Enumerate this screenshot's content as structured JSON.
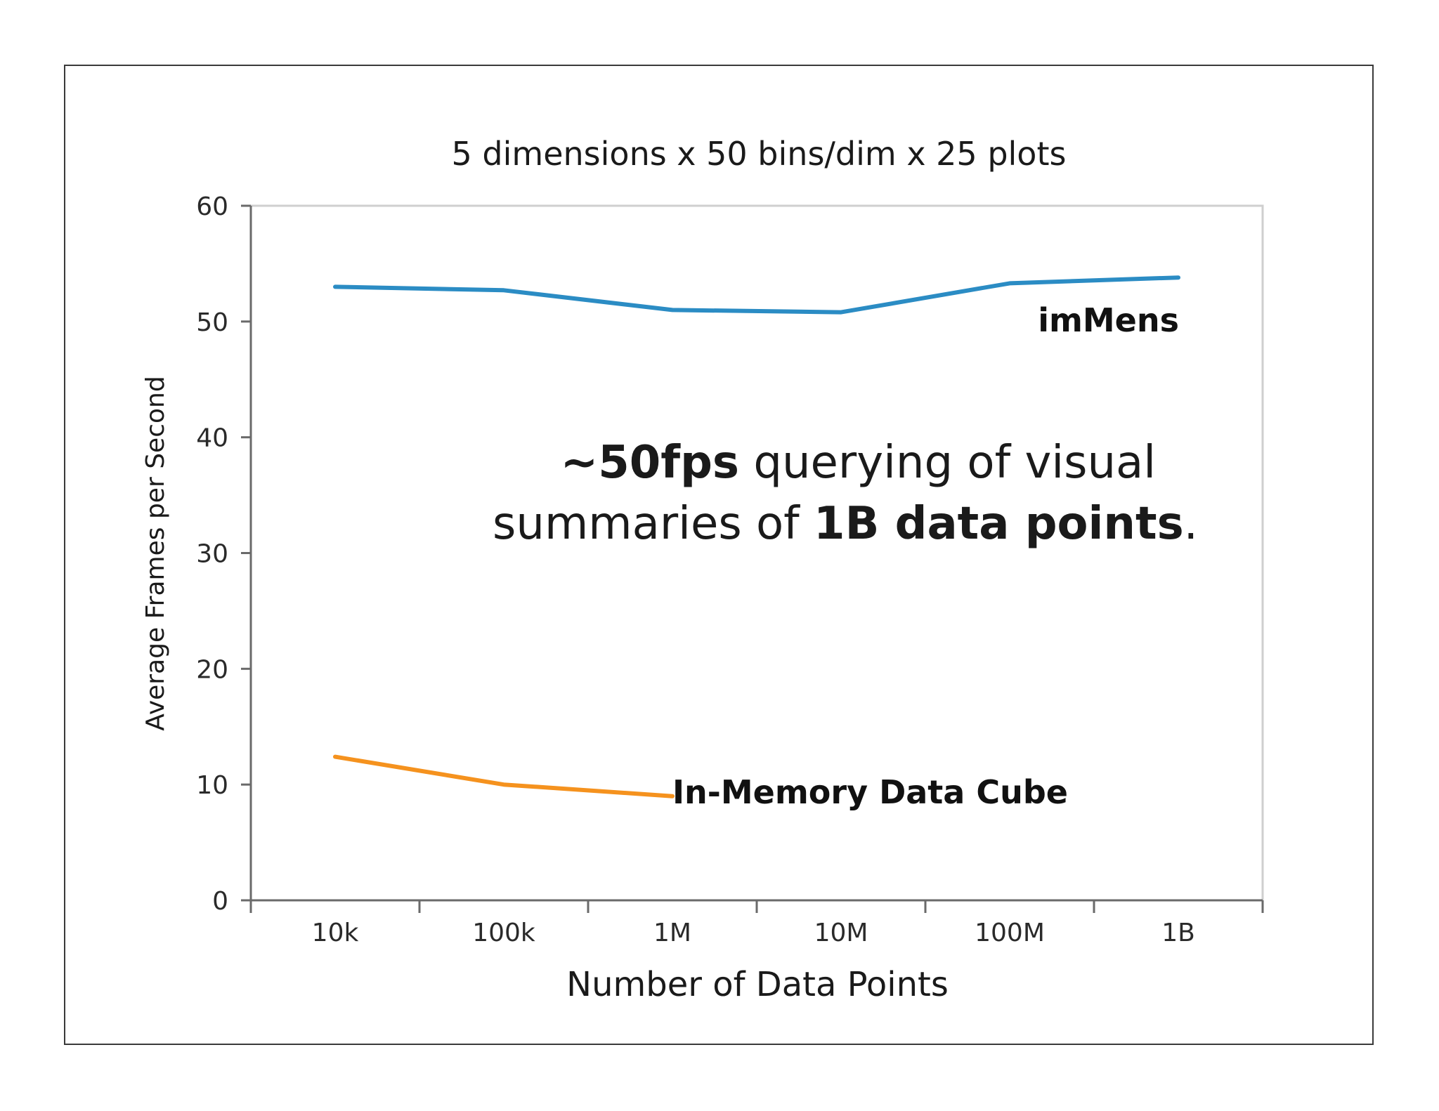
{
  "chart_data": {
    "type": "line",
    "title": "5 dimensions x 50 bins/dim x 25 plots",
    "xlabel": "Number of Data Points",
    "ylabel": "Average Frames per Second",
    "categories": [
      "10k",
      "100k",
      "1M",
      "10M",
      "100M",
      "1B"
    ],
    "ylim": [
      0,
      60
    ],
    "yticks": [
      0,
      10,
      20,
      30,
      40,
      50,
      60
    ],
    "grid": false,
    "legend": "inline",
    "series": [
      {
        "name": "imMens",
        "color": "#2b8cc4",
        "values": [
          53,
          52.7,
          51,
          50.8,
          53.3,
          53.8
        ]
      },
      {
        "name": "In-Memory Data Cube",
        "color": "#f5921e",
        "values": [
          12.4,
          10,
          9,
          null,
          null,
          null
        ]
      }
    ],
    "annotation": {
      "line1_bold": "~50fps",
      "line1_rest": " querying of visual",
      "line2_start": "summaries of ",
      "line2_bold": "1B data points",
      "line2_end": "."
    }
  }
}
